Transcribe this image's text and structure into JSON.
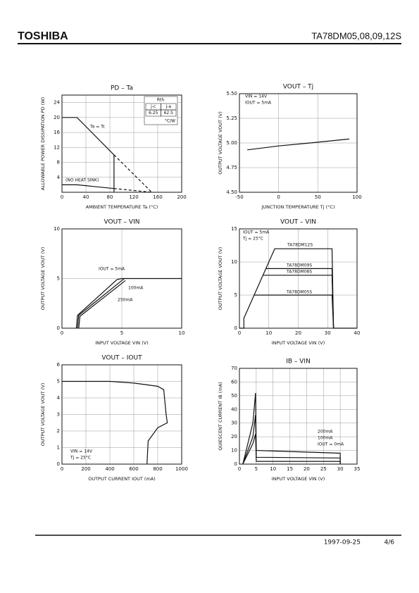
{
  "header": {
    "brand": "TOSHIBA",
    "part": "TA78DM05,08,09,12S"
  },
  "footer": {
    "date": "1997-09-25",
    "page": "4/6"
  },
  "chart_data": [
    {
      "type": "line",
      "title": "PD – Ta",
      "x_label": "AMBIENT TEMPERATURE   Ta   (°C)",
      "y_label": "ALLOWABLE POWER DISSIPATION   PD  (W)",
      "xlim": [
        0,
        200
      ],
      "xticks": [
        0,
        40,
        80,
        120,
        160,
        200
      ],
      "ylim": [
        0,
        26
      ],
      "yticks": [
        4,
        8,
        12,
        16,
        20,
        24
      ],
      "grid": true,
      "series": [
        {
          "x": [
            0,
            25,
            87
          ],
          "values": [
            20,
            20,
            10
          ],
          "color": "#111",
          "dash": false
        },
        {
          "x": [
            87,
            150
          ],
          "values": [
            10,
            0
          ],
          "color": "#111",
          "dash": true
        },
        {
          "x": [
            87,
            87
          ],
          "values": [
            10,
            0
          ],
          "color": "#111",
          "dash": false
        },
        {
          "x": [
            0,
            25,
            87
          ],
          "values": [
            2,
            2,
            1
          ],
          "color": "#111",
          "dash": false
        },
        {
          "x": [
            87,
            150
          ],
          "values": [
            1,
            0
          ],
          "color": "#111",
          "dash": true
        }
      ],
      "annotations": [
        "Ta = Tc",
        "(NO HEAT SINK)"
      ],
      "table": {
        "title": "Rth",
        "rows": [
          [
            "j-c",
            "j-a"
          ],
          [
            "6.25",
            "62.5"
          ]
        ],
        "unit": "°C/W"
      }
    },
    {
      "type": "line",
      "title": "VOUT – Tj",
      "x_label": "JUNCTION TEMPERATURE   Tj   (°C)",
      "y_label": "OUTPUT VOLTAGE   VOUT  (V)",
      "xlim": [
        -50,
        100
      ],
      "xticks": [
        -50,
        0,
        50,
        100
      ],
      "ylim": [
        4.5,
        5.5
      ],
      "yticks": [
        {
          "value": 4.5,
          "label": "4.50"
        },
        {
          "value": 4.75,
          "label": "4.75"
        },
        {
          "value": 5,
          "label": "5.00"
        },
        {
          "value": 5.25,
          "label": "5.25"
        },
        {
          "value": 5.5,
          "label": "5.50"
        }
      ],
      "grid": true,
      "series": [
        {
          "x": [
            -40,
            0,
            40,
            90
          ],
          "values": [
            4.93,
            4.97,
            5.0,
            5.04
          ],
          "color": "#111",
          "dash": false
        }
      ],
      "annotations": [
        "VIN = 14V",
        "IOUT = 5mA"
      ]
    },
    {
      "type": "line",
      "title": "VOUT – VIN",
      "x_label": "INPUT VOLTAGE   VIN   (V)",
      "y_label": "OUTPUT VOLTAGE   VOUT  (V)",
      "xlim": [
        0,
        10
      ],
      "xticks": [
        0,
        5,
        10
      ],
      "ylim": [
        0,
        10
      ],
      "yticks": [
        0,
        5,
        10
      ],
      "grid": true,
      "series": [
        {
          "x": [
            1.2,
            1.3,
            4.6,
            5,
            10
          ],
          "values": [
            0,
            1.3,
            4.9,
            5,
            5
          ],
          "color": "#111",
          "dash": false
        },
        {
          "x": [
            1.3,
            1.4,
            5,
            5.2
          ],
          "values": [
            0,
            1.3,
            4.8,
            5
          ],
          "color": "#111",
          "dash": false
        },
        {
          "x": [
            1.4,
            1.5,
            5.3
          ],
          "values": [
            0,
            1.2,
            4.8
          ],
          "color": "#111",
          "dash": false
        }
      ],
      "annotations": [
        "IOUT = 5mA",
        "100mA",
        "250mA"
      ]
    },
    {
      "type": "line",
      "title": "VOUT – VIN",
      "x_label": "INPUT VOLTAGE   VIN   (V)",
      "y_label": "OUTPUT VOLTAGE   VOUT  (V)",
      "xlim": [
        0,
        40
      ],
      "xticks": [
        0,
        10,
        20,
        30,
        40
      ],
      "ylim": [
        0,
        15
      ],
      "yticks": [
        0,
        5,
        10,
        15
      ],
      "grid": true,
      "series": [
        {
          "name": "TA78DM12S",
          "x": [
            0,
            1.5,
            1.5,
            12,
            31.5,
            32,
            40
          ],
          "values": [
            0,
            0,
            1.5,
            12,
            12,
            0,
            0
          ],
          "color": "#111",
          "dash": false
        },
        {
          "name": "TA78DM09S",
          "x": [
            9,
            31.5,
            32
          ],
          "values": [
            9,
            9,
            0
          ],
          "color": "#111",
          "dash": false
        },
        {
          "name": "TA78DM08S",
          "x": [
            8,
            31.5,
            32
          ],
          "values": [
            8,
            8,
            0
          ],
          "color": "#111",
          "dash": false
        },
        {
          "name": "TA78DM05S",
          "x": [
            5,
            31.5,
            32
          ],
          "values": [
            5,
            5,
            0
          ],
          "color": "#111",
          "dash": false
        }
      ],
      "annotations": [
        "IOUT = 5mA",
        "Tj = 25°C"
      ]
    },
    {
      "type": "line",
      "title": "VOUT – IOUT",
      "x_label": "OUTPUT CURRENT   IOUT   (mA)",
      "y_label": "OUTPUT VOLTAGE   VOUT  (V)",
      "xlim": [
        0,
        1000
      ],
      "xticks": [
        0,
        200,
        400,
        600,
        800,
        1000
      ],
      "ylim": [
        0,
        6
      ],
      "yticks": [
        0,
        1,
        2,
        3,
        4,
        5,
        6
      ],
      "grid": true,
      "series": [
        {
          "x": [
            0,
            400,
            600,
            800,
            850,
            870,
            880,
            800,
            740,
            720,
            710
          ],
          "values": [
            5,
            5,
            4.9,
            4.7,
            4.5,
            3,
            2.5,
            2.2,
            1.6,
            1.4,
            0
          ],
          "color": "#111",
          "dash": false
        }
      ],
      "annotations": [
        "VIN = 14V",
        "Tj = 25°C"
      ]
    },
    {
      "type": "line",
      "title": "IB – VIN",
      "x_label": "INPUT VOLTAGE   VIN   (V)",
      "y_label": "QUIESCENT CURRENT   IB   (mA)",
      "xlim": [
        0,
        35
      ],
      "xticks": [
        0,
        5,
        10,
        15,
        20,
        25,
        30,
        35
      ],
      "ylim": [
        0,
        70
      ],
      "yticks": [
        0,
        10,
        20,
        30,
        40,
        50,
        60,
        70
      ],
      "grid": true,
      "series": [
        {
          "name": "200mA",
          "x": [
            1,
            4,
            4.8,
            5,
            30,
            30
          ],
          "values": [
            0,
            30,
            52,
            10,
            8,
            0
          ],
          "color": "#111",
          "dash": false
        },
        {
          "name": "100mA",
          "x": [
            1,
            4,
            4.8,
            5,
            30,
            30
          ],
          "values": [
            0,
            20,
            36,
            5,
            4.5,
            0
          ],
          "color": "#111",
          "dash": false
        },
        {
          "name": "IOUT = 0mA",
          "x": [
            1,
            4,
            4.8,
            5,
            30,
            30
          ],
          "values": [
            0,
            15,
            22,
            2,
            2,
            0
          ],
          "color": "#111",
          "dash": false
        }
      ],
      "annotations": []
    }
  ]
}
